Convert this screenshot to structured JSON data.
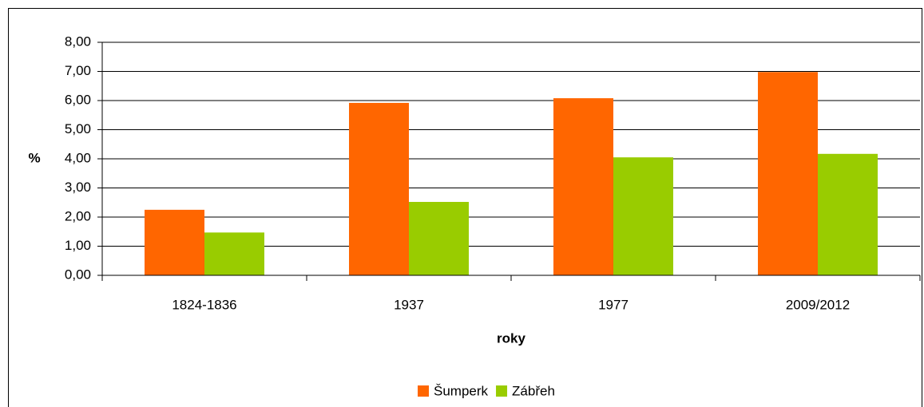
{
  "chart_data": {
    "type": "bar",
    "categories": [
      "1824-1836",
      "1937",
      "1977",
      "2009/2012"
    ],
    "series": [
      {
        "name": "Šumperk",
        "color": "#ff6600",
        "values": [
          2.25,
          5.92,
          6.08,
          6.98
        ]
      },
      {
        "name": "Zábřeh",
        "color": "#99cc00",
        "values": [
          1.47,
          2.52,
          4.05,
          4.17
        ]
      }
    ],
    "ylabel": "%",
    "xlabel": "roky",
    "ylim": [
      0,
      8
    ],
    "yticks": [
      {
        "value": 0,
        "label": "0,00"
      },
      {
        "value": 1,
        "label": "1,00"
      },
      {
        "value": 2,
        "label": "2,00"
      },
      {
        "value": 3,
        "label": "3,00"
      },
      {
        "value": 4,
        "label": "4,00"
      },
      {
        "value": 5,
        "label": "5,00"
      },
      {
        "value": 6,
        "label": "6,00"
      },
      {
        "value": 7,
        "label": "7,00"
      },
      {
        "value": 8,
        "label": "8,00"
      }
    ],
    "grid": true,
    "legend": "bottom"
  }
}
